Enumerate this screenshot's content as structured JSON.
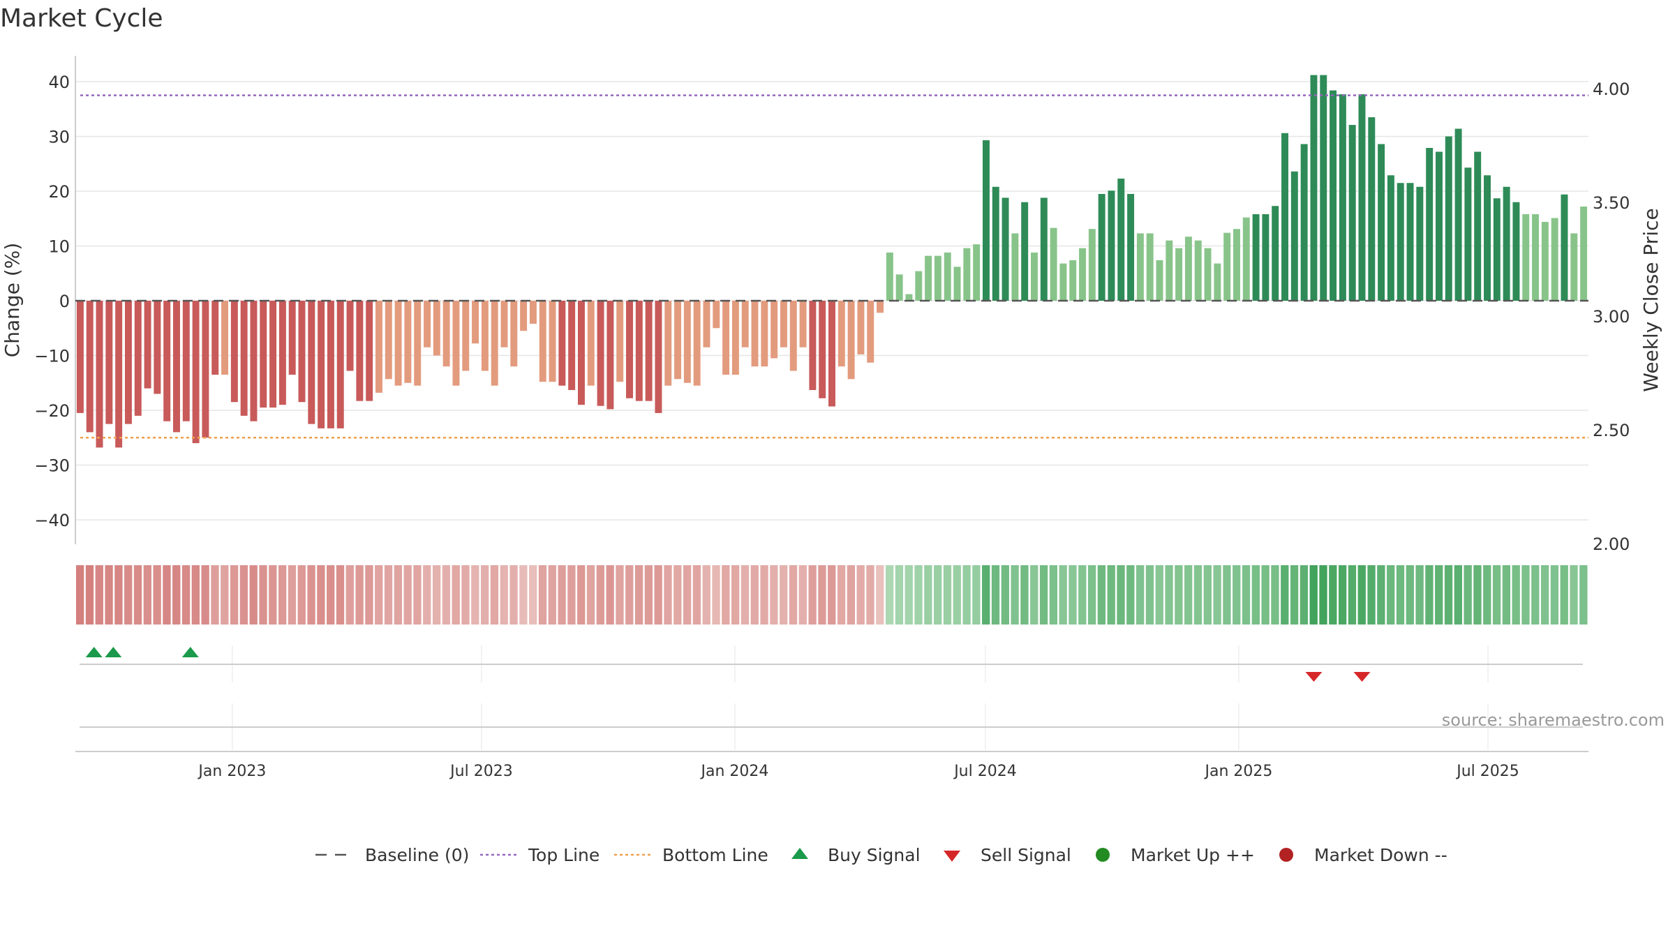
{
  "title": "Market Cycle",
  "source": "source: sharemaestro.com",
  "colors": {
    "bar_down_strong": "#c85a5a",
    "bar_down_weak": "#e39b7e",
    "bar_up_strong": "#2e8b57",
    "bar_up_weak": "#88c48a",
    "top_line": "#9467bd",
    "bottom_line": "#f0a04b",
    "baseline": "#555555",
    "buy": "#1a9a4a",
    "sell": "#d62728",
    "market_up": "#228b22",
    "market_down": "#b22222",
    "grid": "#e6e6e6",
    "axis": "#cccccc"
  },
  "chart_data": {
    "type": "bar",
    "ylabel": "Change (%)",
    "y2label": "Weekly Close Price",
    "ylim": [
      -45,
      45
    ],
    "y2lim": [
      2.0,
      4.1
    ],
    "yticks": [
      40,
      30,
      20,
      10,
      0,
      -10,
      -20,
      -30,
      -40
    ],
    "ytick_labels": [
      "40",
      "30",
      "20",
      "10",
      "0",
      "−10",
      "−20",
      "−30",
      "−40"
    ],
    "y2ticks": [
      4.0,
      3.5,
      3.0,
      2.5,
      2.0
    ],
    "y2tick_labels": [
      "4.00",
      "3.50",
      "3.00",
      "2.50",
      "2.00"
    ],
    "x_start": "2022-09-09",
    "x_step_days": 7,
    "x_end": "2025-09-12",
    "xticks": [
      {
        "date": "2023-01-01",
        "label": "Jan 2023"
      },
      {
        "date": "2023-07-01",
        "label": "Jul 2023"
      },
      {
        "date": "2024-01-01",
        "label": "Jan 2024"
      },
      {
        "date": "2024-07-01",
        "label": "Jul 2024"
      },
      {
        "date": "2025-01-01",
        "label": "Jan 2025"
      },
      {
        "date": "2025-07-01",
        "label": "Jul 2025"
      }
    ],
    "top_line": 37.5,
    "bottom_line": -25,
    "values": [
      -20.5,
      -24,
      -26.8,
      -22.5,
      -26.8,
      -22.5,
      -21,
      -16,
      -17,
      -22,
      -24,
      -22,
      -26,
      -25,
      -13.5,
      -13.5,
      -18.5,
      -21,
      -22,
      -19.5,
      -19.5,
      -19,
      -13.5,
      -18.5,
      -22.5,
      -23.3,
      -23.3,
      -23.3,
      -12.8,
      -18.3,
      -18.3,
      -16.8,
      -14.3,
      -15.5,
      -15,
      -15.5,
      -8.5,
      -10,
      -12,
      -15.5,
      -12.8,
      -7.8,
      -12.8,
      -15.5,
      -8.5,
      -12,
      -5.5,
      -4.2,
      -14.8,
      -14.8,
      -15.5,
      -16.3,
      -19,
      -15.5,
      -19.2,
      -19.8,
      -14.8,
      -17.8,
      -18.3,
      -18.3,
      -20.5,
      -15.5,
      -14.3,
      -15,
      -15.5,
      -8.5,
      -5,
      -13.5,
      -13.5,
      -8.5,
      -12,
      -12,
      -10.5,
      -8.5,
      -12.8,
      -8.5,
      -16.3,
      -17.8,
      -19.3,
      -12,
      -14.3,
      -9.8,
      -11.3,
      -2.2,
      8.8,
      4.8,
      1.2,
      5.4,
      8.2,
      8.2,
      8.8,
      6.2,
      9.6,
      10.3,
      29.3,
      20.8,
      18.8,
      12.3,
      18,
      8.8,
      18.8,
      13.3,
      6.8,
      7.4,
      9.6,
      13.1,
      19.5,
      20.1,
      22.3,
      19.5,
      12.3,
      12.3,
      7.4,
      11,
      9.6,
      11.7,
      11,
      9.6,
      6.8,
      12.4,
      13.1,
      15.2,
      15.8,
      15.8,
      17.3,
      30.6,
      23.6,
      28.6,
      41.2,
      41.2,
      38.4,
      37.7,
      32.1,
      37.7,
      33.5,
      28.6,
      22.9,
      21.5,
      21.5,
      20.8,
      27.9,
      27.2,
      30,
      31.4,
      24.3,
      27.2,
      22.9,
      18.7,
      20.8,
      18,
      15.8,
      15.8,
      14.4,
      15.1,
      19.4,
      12.3,
      17.2
    ],
    "intensity": [
      0.7,
      0.7,
      0.65,
      0.65,
      0.65,
      0.6,
      0.6,
      0.58,
      0.58,
      0.65,
      0.65,
      0.62,
      0.62,
      0.6,
      0.45,
      0.42,
      0.5,
      0.55,
      0.6,
      0.55,
      0.52,
      0.5,
      0.45,
      0.5,
      0.55,
      0.58,
      0.58,
      0.58,
      0.45,
      0.5,
      0.5,
      0.42,
      0.4,
      0.42,
      0.4,
      0.4,
      0.32,
      0.3,
      0.32,
      0.38,
      0.35,
      0.28,
      0.32,
      0.38,
      0.28,
      0.32,
      0.22,
      0.2,
      0.42,
      0.42,
      0.45,
      0.45,
      0.5,
      0.42,
      0.48,
      0.52,
      0.42,
      0.45,
      0.48,
      0.48,
      0.5,
      0.4,
      0.38,
      0.4,
      0.4,
      0.3,
      0.25,
      0.38,
      0.38,
      0.32,
      0.36,
      0.36,
      0.32,
      0.3,
      0.38,
      0.32,
      0.45,
      0.48,
      0.5,
      0.38,
      0.42,
      0.35,
      0.35,
      0.18,
      0.25,
      0.3,
      0.3,
      0.32,
      0.35,
      0.35,
      0.35,
      0.35,
      0.38,
      0.38,
      0.72,
      0.6,
      0.58,
      0.5,
      0.58,
      0.45,
      0.58,
      0.52,
      0.45,
      0.45,
      0.48,
      0.52,
      0.6,
      0.6,
      0.62,
      0.6,
      0.5,
      0.5,
      0.45,
      0.48,
      0.48,
      0.48,
      0.48,
      0.48,
      0.45,
      0.5,
      0.5,
      0.52,
      0.55,
      0.55,
      0.55,
      0.72,
      0.65,
      0.7,
      0.85,
      0.85,
      0.8,
      0.8,
      0.75,
      0.8,
      0.75,
      0.7,
      0.62,
      0.6,
      0.6,
      0.6,
      0.68,
      0.68,
      0.7,
      0.72,
      0.62,
      0.66,
      0.6,
      0.55,
      0.58,
      0.55,
      0.52,
      0.52,
      0.5,
      0.5,
      0.55,
      0.45,
      0.52
    ],
    "buy_signals": [
      1,
      3,
      11
    ],
    "sell_signals": [
      128,
      133
    ],
    "legend": [
      {
        "key": "baseline",
        "label": "Baseline (0)"
      },
      {
        "key": "top_line",
        "label": "Top Line"
      },
      {
        "key": "bottom_line",
        "label": "Bottom Line"
      },
      {
        "key": "buy",
        "label": "Buy Signal"
      },
      {
        "key": "sell",
        "label": "Sell Signal"
      },
      {
        "key": "market_up",
        "label": "Market Up ++"
      },
      {
        "key": "market_down",
        "label": "Market Down --"
      }
    ],
    "legend_position": "bottom-center",
    "grid": true
  }
}
